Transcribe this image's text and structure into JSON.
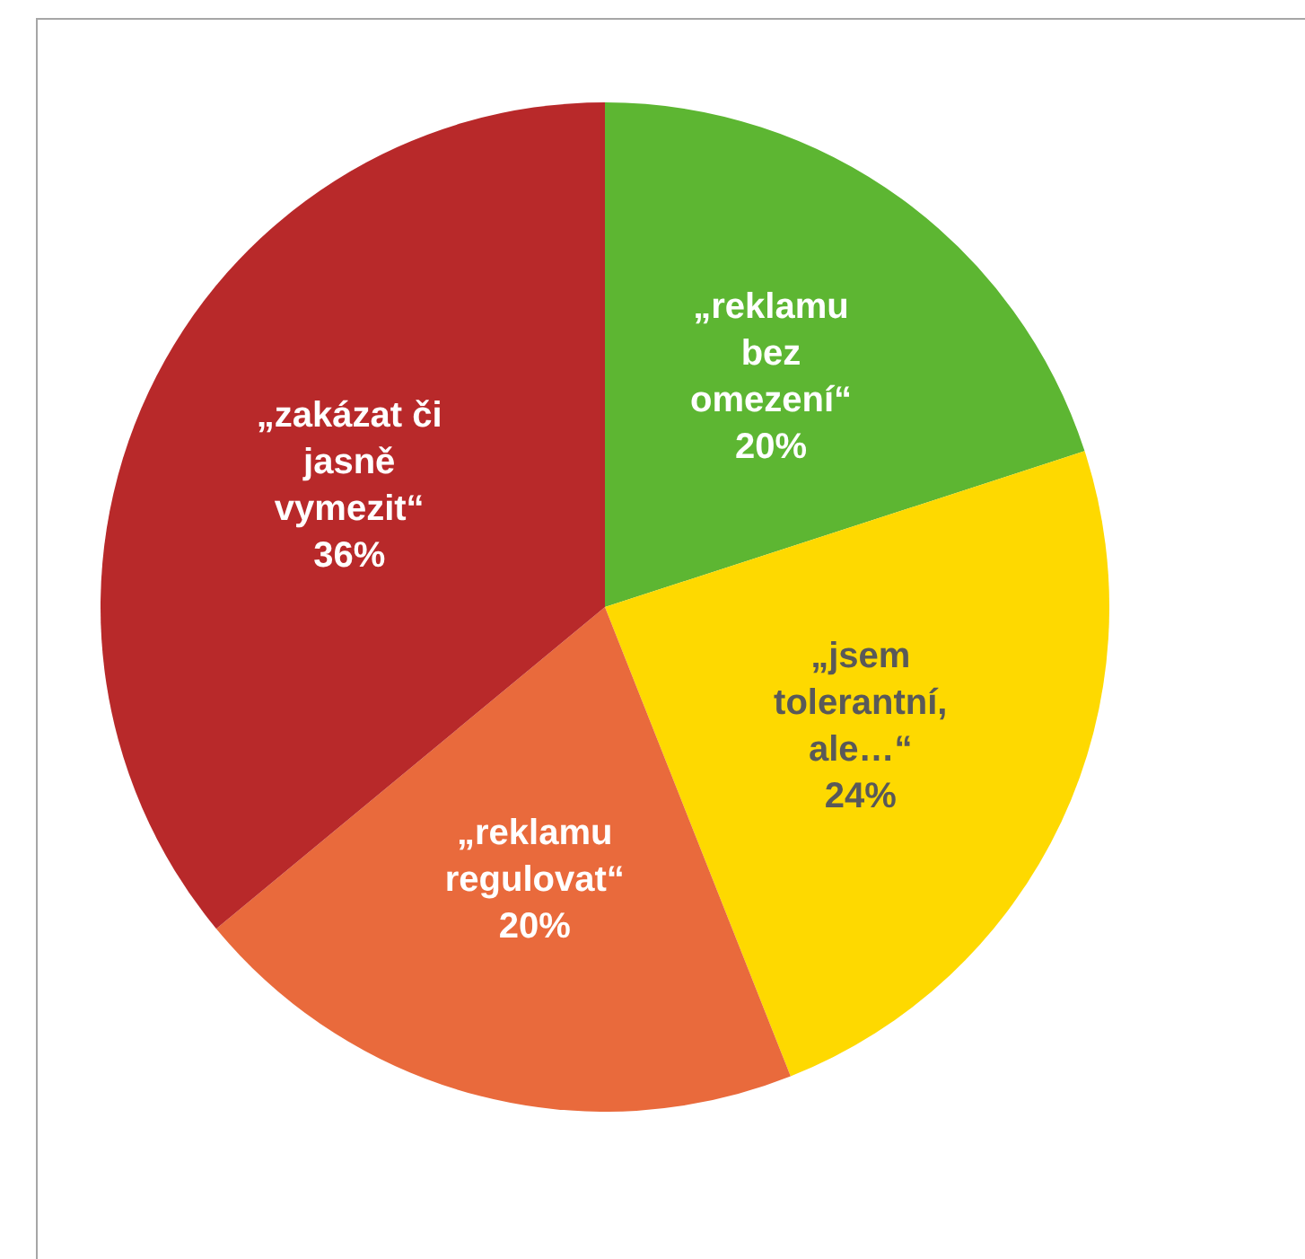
{
  "chart_data": {
    "type": "pie",
    "categories": [
      "„reklamu bez omezení“",
      "„jsem tolerantní, ale…“",
      "„reklamu regulovat“",
      "„zakázat či jasně vymezit“"
    ],
    "values": [
      20,
      24,
      20,
      36
    ],
    "colors": [
      "#5db632",
      "#fed900",
      "#e96a3c",
      "#b8292a"
    ],
    "value_labels": [
      "20%",
      "24%",
      "20%",
      "36%"
    ],
    "legend": false
  }
}
